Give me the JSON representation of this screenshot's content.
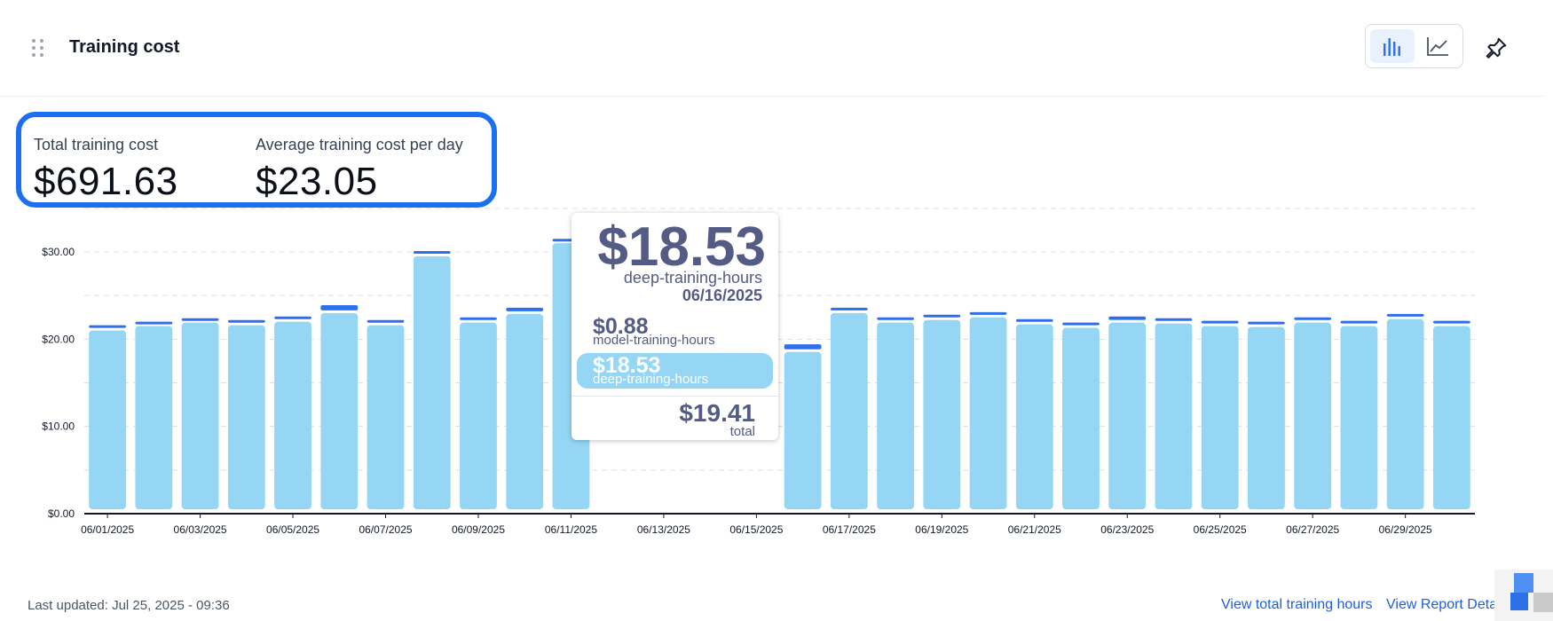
{
  "header": {
    "title": "Training cost",
    "view_toggle": {
      "options": [
        "bar-chart-icon",
        "line-chart-icon"
      ],
      "selected": "bar-chart-icon"
    },
    "pin_icon": "pin-icon"
  },
  "summary": {
    "total_label": "Total training cost",
    "total_value": "$691.63",
    "average_label": "Average training cost per day",
    "average_value": "$23.05",
    "highlight_color": "#1d6ff2"
  },
  "chart_data": {
    "type": "bar",
    "stacked": true,
    "grid": true,
    "ylim": [
      0,
      30
    ],
    "yticks": [
      "$0.00",
      "$10.00",
      "$20.00",
      "$30.00"
    ],
    "ytick_values": [
      0,
      10,
      20,
      30
    ],
    "categories": [
      "06/01/2025",
      "06/02/2025",
      "06/03/2025",
      "06/04/2025",
      "06/05/2025",
      "06/06/2025",
      "06/07/2025",
      "06/08/2025",
      "06/09/2025",
      "06/10/2025",
      "06/11/2025",
      "06/12/2025",
      "06/13/2025",
      "06/14/2025",
      "06/15/2025",
      "06/16/2025",
      "06/17/2025",
      "06/18/2025",
      "06/19/2025",
      "06/20/2025",
      "06/21/2025",
      "06/22/2025",
      "06/23/2025",
      "06/24/2025",
      "06/25/2025",
      "06/26/2025",
      "06/27/2025",
      "06/28/2025",
      "06/29/2025",
      "06/30/2025"
    ],
    "xtick_labels": [
      "06/01/2025",
      "06/03/2025",
      "06/05/2025",
      "06/07/2025",
      "06/09/2025",
      "06/11/2025",
      "06/13/2025",
      "06/15/2025",
      "06/17/2025",
      "06/19/2025",
      "06/21/2025",
      "06/23/2025",
      "06/25/2025",
      "06/27/2025",
      "06/29/2025"
    ],
    "series": [
      {
        "name": "deep-training-hours",
        "color": "#94d6f4",
        "values": [
          21.0,
          21.5,
          21.9,
          21.6,
          22.0,
          23.0,
          21.6,
          29.5,
          21.9,
          22.9,
          31.0,
          null,
          null,
          null,
          null,
          18.53,
          23.0,
          21.9,
          22.2,
          22.5,
          21.7,
          21.3,
          21.9,
          21.8,
          21.5,
          21.4,
          21.9,
          21.5,
          22.3,
          21.5
        ]
      },
      {
        "name": "model-training-hours",
        "color": "#2f6fec",
        "values": [
          0.6,
          0.5,
          0.5,
          0.6,
          0.6,
          0.9,
          0.6,
          0.6,
          0.6,
          0.7,
          0.5,
          null,
          null,
          null,
          null,
          0.88,
          0.6,
          0.6,
          0.6,
          0.6,
          0.6,
          0.6,
          0.7,
          0.6,
          0.6,
          0.6,
          0.6,
          0.6,
          0.6,
          0.6
        ]
      }
    ]
  },
  "tooltip": {
    "big_value": "$18.53",
    "series_name": "deep-training-hours",
    "date": "06/16/2025",
    "rows": [
      {
        "value": "$0.88",
        "name": "model-training-hours"
      },
      {
        "value": "$18.53",
        "name": "deep-training-hours"
      }
    ],
    "total_value": "$19.41",
    "total_label": "total"
  },
  "footer": {
    "last_updated": "Last updated: Jul 25, 2025 - 09:36",
    "link_hours": "View total training hours",
    "link_report": "View Report Deta"
  }
}
